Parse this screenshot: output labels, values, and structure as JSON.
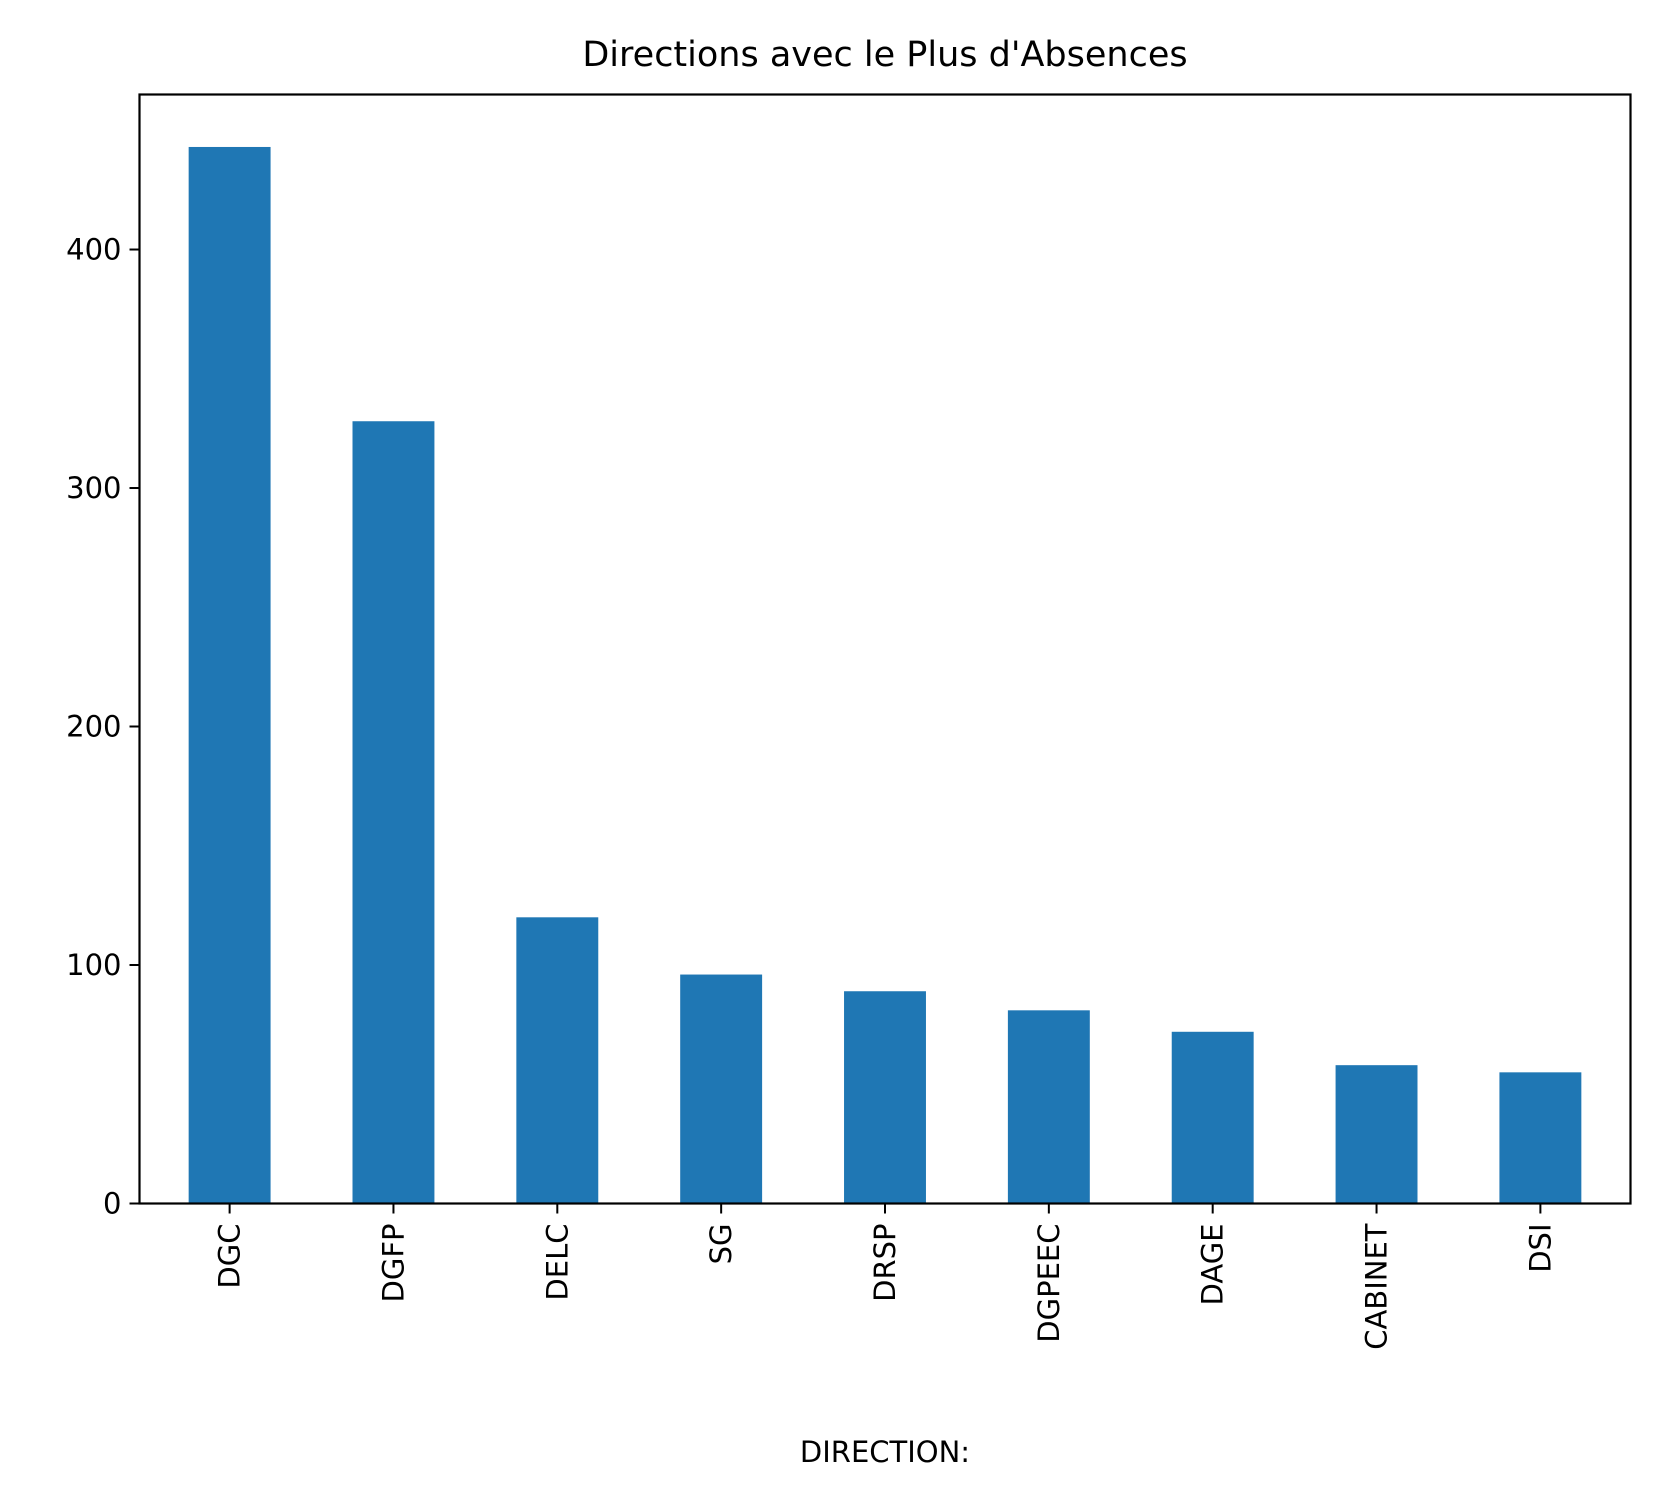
{
  "chart_data": {
    "type": "bar",
    "title": "Directions avec le Plus d'Absences",
    "xlabel": "DIRECTION:",
    "ylabel": "",
    "categories": [
      "DGC",
      "DGFP",
      "DELC",
      "SG",
      "DRSP",
      "DGPEEC",
      "DAGE",
      "CABINET",
      "DSI"
    ],
    "values": [
      443,
      328,
      120,
      96,
      89,
      81,
      72,
      58,
      55
    ],
    "ylim": [
      0,
      465
    ],
    "yticks": [
      0,
      100,
      200,
      300,
      400
    ],
    "grid": false,
    "legend": "none",
    "bar_color": "#1f77b4"
  }
}
